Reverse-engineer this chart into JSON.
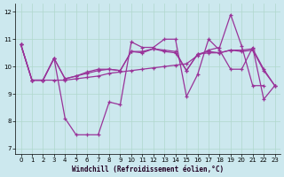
{
  "xlabel": "Windchill (Refroidissement éolien,°C)",
  "background_color": "#cce8ee",
  "line_color": "#993399",
  "xlim": [
    0,
    23
  ],
  "ylim": [
    6.8,
    12.3
  ],
  "yticks": [
    7,
    8,
    9,
    10,
    11,
    12
  ],
  "xticks": [
    0,
    1,
    2,
    3,
    4,
    5,
    6,
    7,
    8,
    9,
    10,
    11,
    12,
    13,
    14,
    15,
    16,
    17,
    18,
    19,
    20,
    21,
    22,
    23
  ],
  "series": [
    [
      10.8,
      9.5,
      9.5,
      9.5,
      9.5,
      9.55,
      9.6,
      9.65,
      9.75,
      9.8,
      9.85,
      9.9,
      9.95,
      10.0,
      10.05,
      10.1,
      10.4,
      10.6,
      10.7,
      11.9,
      10.75,
      9.3,
      9.3,
      null
    ],
    [
      10.8,
      9.5,
      9.5,
      10.3,
      8.1,
      7.5,
      7.5,
      7.5,
      8.7,
      8.6,
      10.9,
      10.7,
      10.7,
      11.0,
      11.0,
      8.9,
      9.7,
      11.0,
      10.6,
      9.9,
      9.9,
      10.7,
      8.8,
      9.3
    ],
    [
      10.8,
      9.5,
      9.5,
      10.3,
      9.55,
      9.65,
      9.75,
      9.85,
      9.9,
      9.85,
      10.55,
      10.55,
      10.65,
      10.6,
      10.55,
      9.85,
      10.45,
      10.55,
      10.5,
      10.6,
      10.6,
      10.65,
      9.9,
      9.3
    ],
    [
      10.8,
      9.5,
      9.5,
      10.3,
      9.55,
      9.65,
      9.8,
      9.9,
      9.9,
      9.85,
      10.55,
      10.5,
      10.65,
      10.55,
      10.5,
      9.85,
      10.45,
      10.5,
      10.5,
      10.6,
      10.55,
      10.6,
      9.85,
      9.3
    ]
  ]
}
